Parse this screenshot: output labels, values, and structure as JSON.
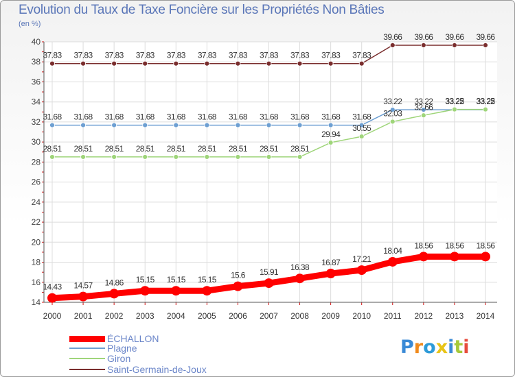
{
  "chart_data": {
    "type": "line",
    "title": "Evolution du Taux de Taxe Foncière sur les Propriétés Non Bâties",
    "ylabel": "(en %)",
    "xlabel": "",
    "ylim": [
      14,
      40
    ],
    "yticks": [
      14,
      16,
      18,
      20,
      22,
      24,
      26,
      28,
      30,
      32,
      34,
      36,
      38,
      40
    ],
    "categories": [
      "2000",
      "2001",
      "2002",
      "2003",
      "2004",
      "2005",
      "2006",
      "2007",
      "2008",
      "2009",
      "2010",
      "2011",
      "2012",
      "2013",
      "2014"
    ],
    "series": [
      {
        "name": "Saint-Germain-de-Joux",
        "color": "#7a2e2e",
        "values": [
          37.83,
          37.83,
          37.83,
          37.83,
          37.83,
          37.83,
          37.83,
          37.83,
          37.83,
          37.83,
          37.83,
          39.66,
          39.66,
          39.66,
          39.66
        ],
        "labels": [
          "37.83",
          "37.83",
          "37.83",
          "37.83",
          "37.83",
          "37.83",
          "37.83",
          "37.83",
          "37.83",
          "37.83",
          "37.83",
          "39.66",
          "39.66",
          "39.66",
          "39.66"
        ]
      },
      {
        "name": "Plagne",
        "color": "#6d9fd2",
        "values": [
          31.68,
          31.68,
          31.68,
          31.68,
          31.68,
          31.68,
          31.68,
          31.68,
          31.68,
          31.68,
          31.68,
          33.22,
          33.22,
          33.22,
          33.22
        ],
        "labels": [
          "31.68",
          "31.68",
          "31.68",
          "31.68",
          "31.68",
          "31.68",
          "31.68",
          "31.68",
          "31.68",
          "31.68",
          "31.68",
          "33.22",
          "33.22",
          "33.22",
          "33.22"
        ]
      },
      {
        "name": "Giron",
        "color": "#9fd57a",
        "values": [
          28.51,
          28.51,
          28.51,
          28.51,
          28.51,
          28.51,
          28.51,
          28.51,
          28.51,
          29.94,
          30.55,
          32.03,
          32.66,
          33.25,
          33.25
        ],
        "labels": [
          "28.51",
          "28.51",
          "28.51",
          "28.51",
          "28.51",
          "28.51",
          "28.51",
          "28.51",
          "28.51",
          "29.94",
          "30.55",
          "32.03",
          "32.66",
          "33.25",
          "33.25"
        ]
      },
      {
        "name": "ÉCHALLON",
        "color": "#ff0000",
        "values": [
          14.43,
          14.57,
          14.86,
          15.15,
          15.15,
          15.15,
          15.6,
          15.91,
          16.38,
          16.87,
          17.21,
          18.04,
          18.56,
          18.56,
          18.56
        ],
        "labels": [
          "14.43",
          "14.57",
          "14.86",
          "15.15",
          "15.15",
          "15.15",
          "15.6",
          "15.91",
          "16.38",
          "16.87",
          "17.21",
          "18.04",
          "18.56",
          "18.56",
          "18.56"
        ]
      }
    ],
    "legend": [
      "ÉCHALLON",
      "Plagne",
      "Giron",
      "Saint-Germain-de-Joux"
    ]
  },
  "branding": {
    "logo_text": "Proxiti"
  }
}
